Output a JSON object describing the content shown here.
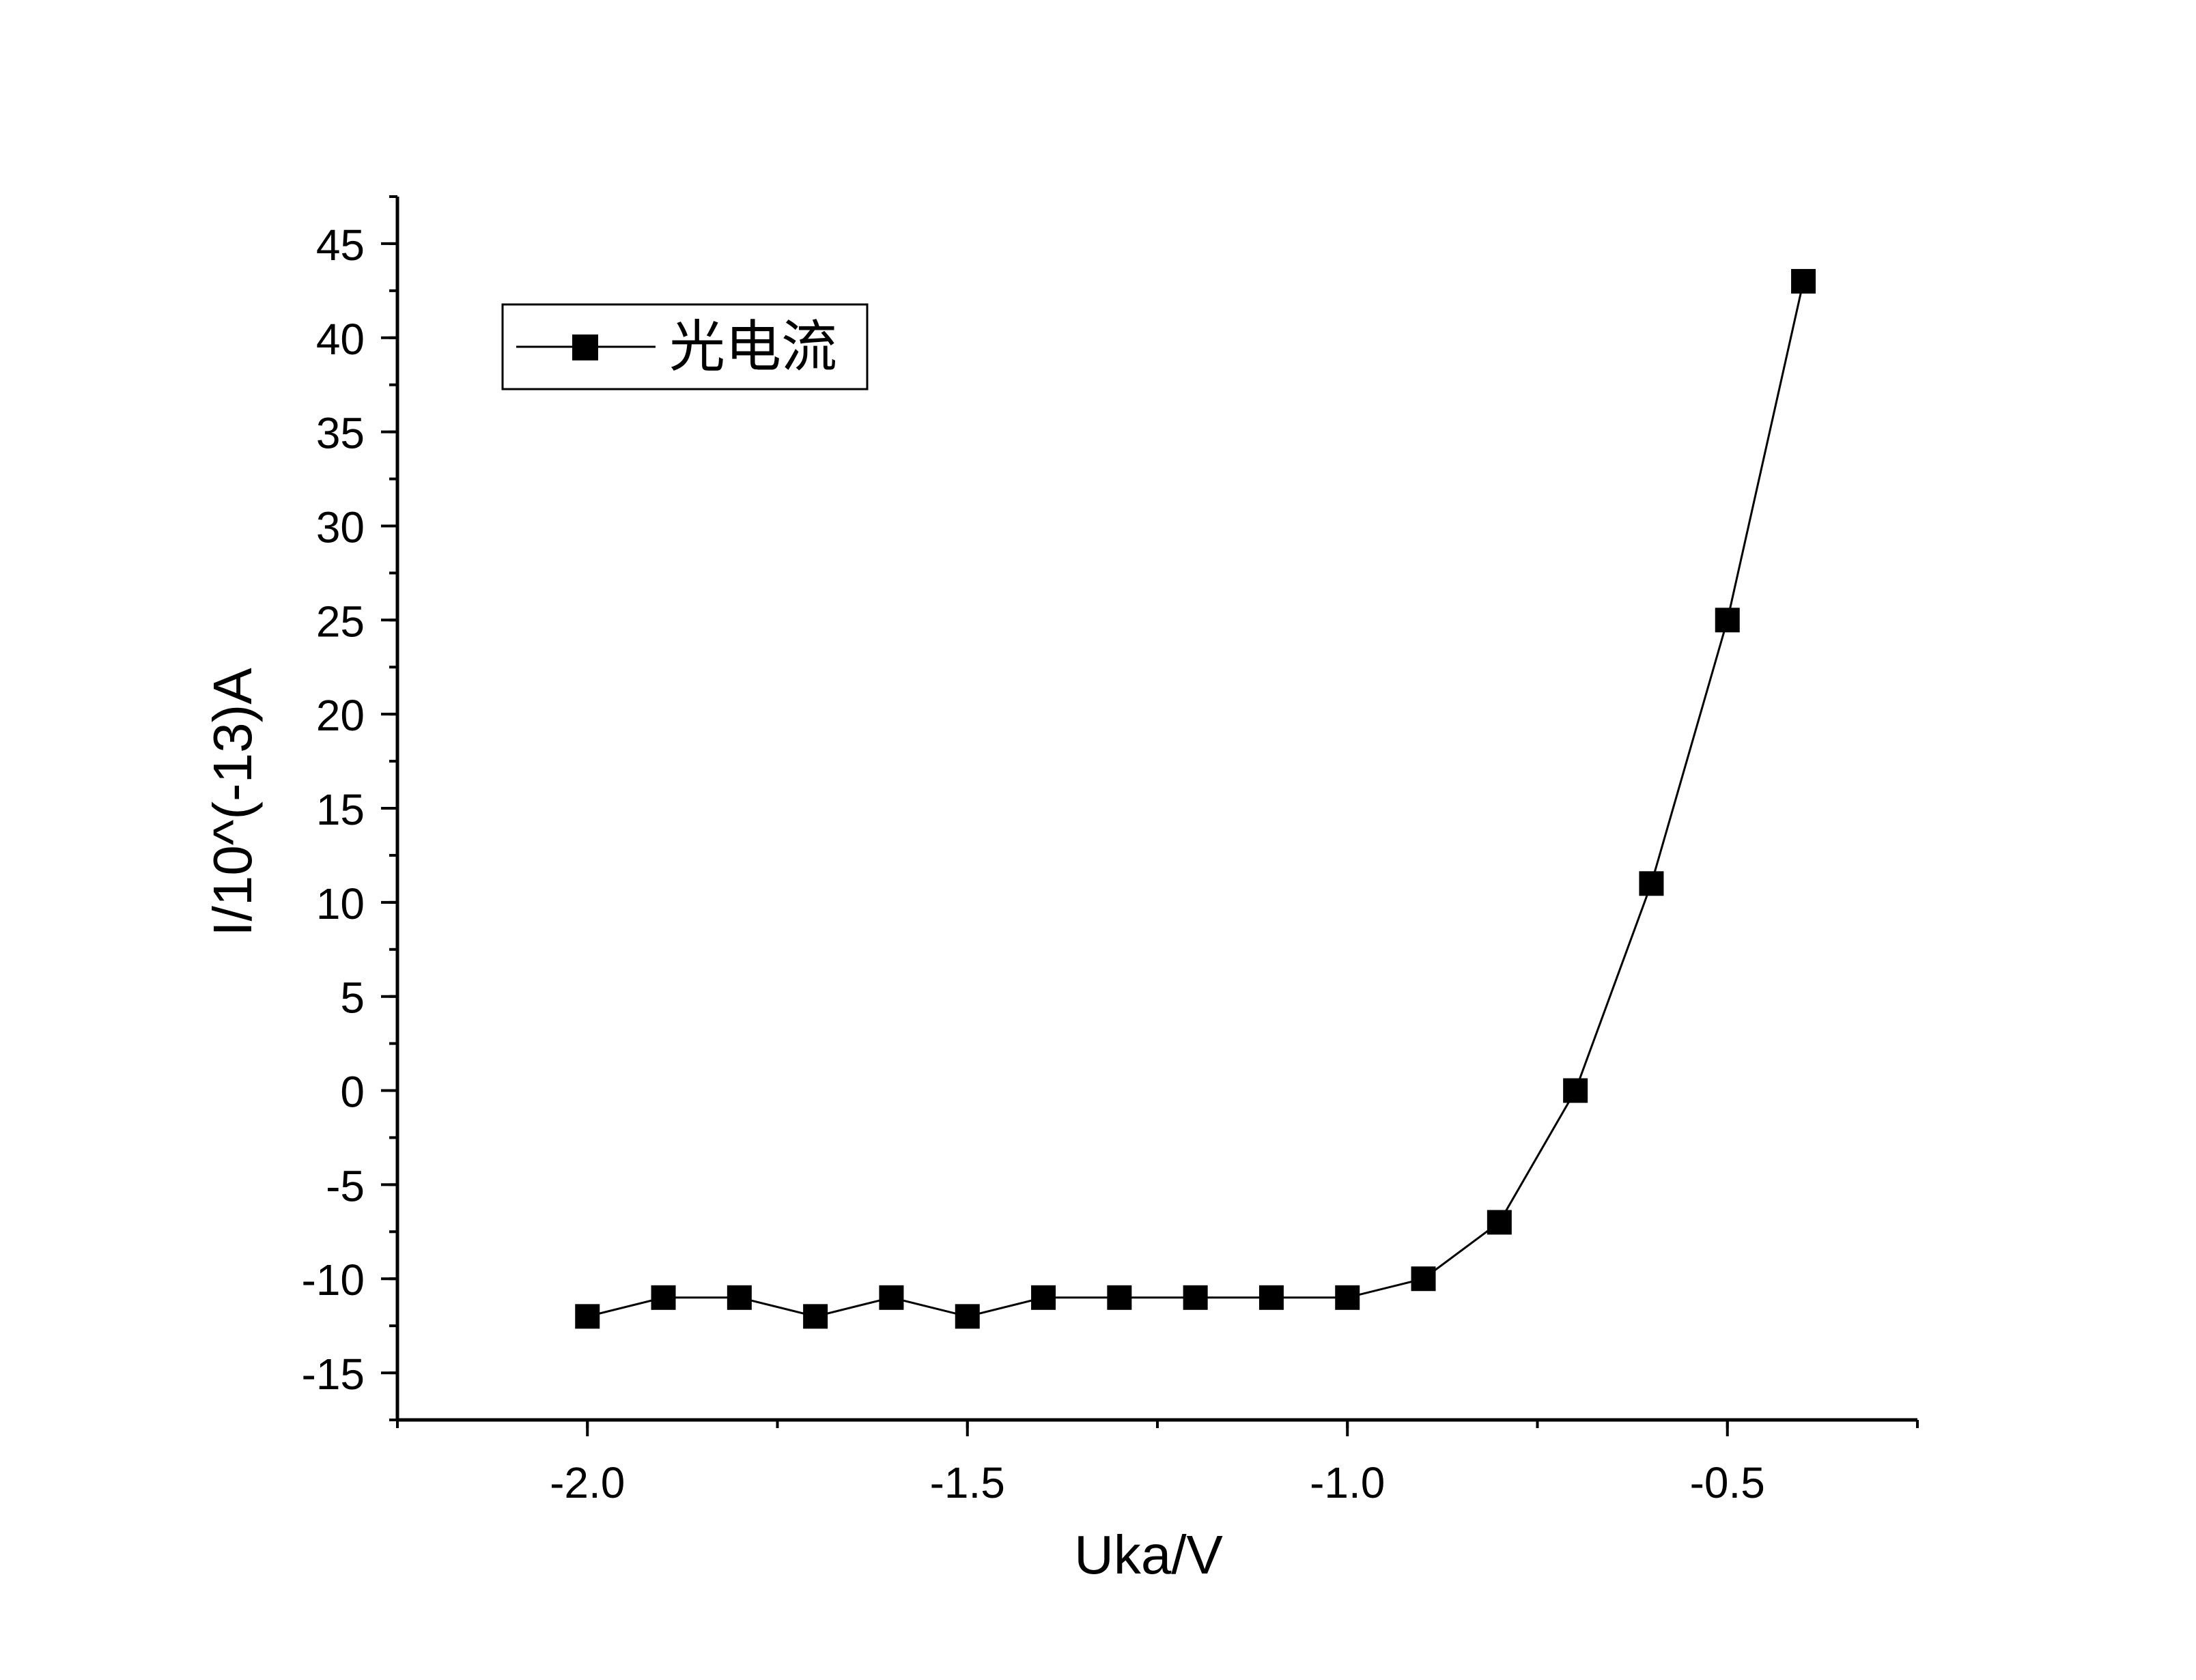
{
  "chart_data": {
    "type": "line",
    "xlabel": "Uka/V",
    "ylabel": "I/10^(-13)A",
    "xlim": [
      -2.25,
      -0.25
    ],
    "ylim": [
      -17.5,
      47.5
    ],
    "x_ticks": [
      -2.0,
      -1.5,
      -1.0,
      -0.5
    ],
    "x_tick_labels": [
      "-2.0",
      "-1.5",
      "-1.0",
      "-0.5"
    ],
    "y_ticks": [
      -15,
      -10,
      -5,
      0,
      5,
      10,
      15,
      20,
      25,
      30,
      35,
      40,
      45
    ],
    "y_tick_labels": [
      "-15",
      "-10",
      "-5",
      "0",
      "5",
      "10",
      "15",
      "20",
      "25",
      "30",
      "35",
      "40",
      "45"
    ],
    "grid": false,
    "legend_position": "top-left",
    "series": [
      {
        "name": "光电流",
        "marker": "square",
        "color": "#000000",
        "x": [
          -2.0,
          -1.9,
          -1.8,
          -1.7,
          -1.6,
          -1.5,
          -1.4,
          -1.3,
          -1.2,
          -1.1,
          -1.0,
          -0.9,
          -0.8,
          -0.7,
          -0.6,
          -0.5,
          -0.4
        ],
        "y": [
          -12,
          -11,
          -11,
          -12,
          -11,
          -12,
          -11,
          -11,
          -11,
          -11,
          -11,
          -10,
          -7,
          0,
          11,
          25,
          43
        ]
      }
    ]
  }
}
